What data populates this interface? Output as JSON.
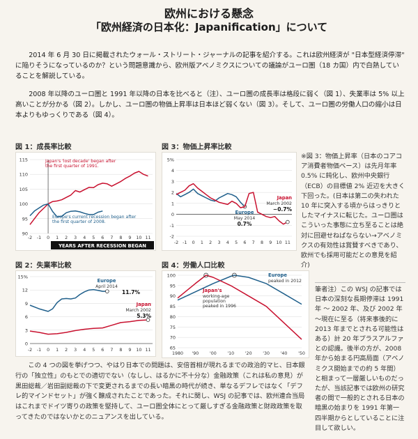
{
  "header": {
    "title": "欧州における懸念",
    "subtitle": "「欧州経済の日本化：Japanification」について"
  },
  "intro": {
    "p1": "2014 年 6 月 30 日に掲載されたウォール・ストリート・ジャーナルの記事を紹介する。これは欧州経済が \"日本型経済停滞\" に陥りそうになっているのか？という問題意識から、欧州版アベノミクスについての議論がユーロ圏（18 カ国）内で白熱していることを解説している。",
    "p2": "2008 年以降のユーロ圏と 1991 年以降の日本を比べると（注）、ユーロ圏の成長率は格段に弱く（図 1）、失業率は 5% 以上高いことが分かる（図 2）。しかし、ユーロ圏の物価上昇率は日本ほど弱くない（図 3）。そして、ユーロ圏の労働人口の縮小は日本よりもゆっくりである（図 4）。"
  },
  "fig1": {
    "label": "図 1：成長率比較",
    "japan_note": "Japan's 'lost decade' began after the first quarter of 1991.",
    "europe_note": "Europe's current recession began after the first quarter of 2008.",
    "axis_banner": "YEARS AFTER RECESSION BEGAN",
    "y_ticks": [
      "115",
      "110",
      "105",
      "100",
      "95",
      "90"
    ],
    "x_ticks": [
      "-2",
      "-1",
      "0",
      "1",
      "2",
      "3",
      "4",
      "5",
      "6",
      "7",
      "8",
      "9",
      "10",
      "11"
    ],
    "colors": {
      "japan": "#c8102e",
      "europe": "#1f5f8b"
    }
  },
  "fig2": {
    "label": "図 2：失業率比較",
    "y_ticks": [
      "15%",
      "12",
      "9",
      "6",
      "3",
      "0"
    ],
    "x_ticks": [
      "-2",
      "-1",
      "0",
      "1",
      "2",
      "3",
      "4",
      "5",
      "6",
      "7",
      "8",
      "9",
      "10",
      "11"
    ],
    "europe_name": "Europe",
    "europe_date": "April 2014",
    "europe_value": "11.7%",
    "japan_name": "Japan",
    "japan_date": "March 2002",
    "japan_value": "5.3%"
  },
  "fig3": {
    "label": "図 3：物価上昇率比較",
    "y_ticks": [
      "5%",
      "4",
      "3",
      "2",
      "1",
      "0",
      "-1",
      "-2"
    ],
    "x_ticks": [
      "-2",
      "-1",
      "0",
      "1",
      "2",
      "3",
      "4",
      "5",
      "6",
      "7",
      "8",
      "9",
      "10",
      "11"
    ],
    "japan_name": "Japan",
    "japan_date": "March 2002",
    "japan_value": "−0.7%",
    "europe_name": "Europe",
    "europe_date": "May 2014",
    "europe_value": "0.7%"
  },
  "fig4": {
    "label": "図 4：労働人口比較",
    "y_ticks": [
      "100",
      "95",
      "90",
      "85",
      "80",
      "75",
      "70",
      "65"
    ],
    "x_ticks": [
      "1980",
      "'90",
      "'00",
      "'10",
      "'20",
      "'30",
      "'40",
      "'50"
    ],
    "europe_name": "Europe",
    "europe_note": "peaked in 2012",
    "japan_name": "Japan's",
    "japan_note1": "working-age",
    "japan_note2": "population",
    "japan_note3": "peaked in 1996"
  },
  "note": "※図 3：物価上昇率（日本のコアコア消費者物価ベース）は先月年率 0.5% に鈍化し、欧州中央銀行（ECB）の目標値 2% 近辺を大きく下回った。(日本は第二の失われた 10 年に突入する頃からはっきりとしたマイナスに転じた。ユーロ圏はこういった事態に立ち至ることは絶対に回避せねばならない→アベノミクスの有効性は賞賛すべきであり、欧州でも採用可能だとの意見を紹介)",
  "author_note": "筆者注）この WSJ の記事では日本の深刻な長期停滞は 1991 年 〜 2002 年、及び 2002 年 〜現在に至る（将来事後的に 2013 年までとされる可能性はある）計 20 年プラスアルファとの認識。後半の方が、2008 年から始まる円高局面（アベノミクス開始までの約 5 年間）と相まって一層厳しいものだったが、当該記事では欧州の研究者の間で一般的とされる日本の暗黒の始まりを 1991 年第一四半期からとしていることに注目して欲しい。",
  "conclusion": "この 4 つの図を挙げつつ、やはり日本での問題は、安倍首相が現れるまでの政治的マヒ、日本銀行の「独立性」のもとでの適切でない（なしし、はるかに不十分な）金融政策（これは私の意見）が黒田総裁／岩田副総裁の下で変更されるまでの長い暗黒の時代が続き、単なるデフレではなく「デフレ的マインドセット」が強く醸成されたことであった。それに関し、WSJ の記事では、欧州連合当局はこれまでドイツ寄りの政策を堅持して、ユーロ圏全体にとって厳しすぎる金融政策と財政政策を取ってきたのではないかとのニュアンスを出している。",
  "chart_data": [
    {
      "type": "line",
      "title": "図 1：成長率比較",
      "xlabel": "YEARS AFTER RECESSION BEGAN",
      "ylim": [
        90,
        115
      ],
      "xlim": [
        -2,
        11.5
      ],
      "series": [
        {
          "name": "Japan",
          "x": [
            -2,
            -1.5,
            -1,
            -0.5,
            0,
            0.5,
            1,
            1.5,
            2,
            2.5,
            3,
            3.5,
            4,
            4.5,
            5,
            5.5,
            6,
            6.5,
            7,
            7.5,
            8,
            8.5,
            9,
            9.5,
            10,
            10.5,
            11
          ],
          "y": [
            93,
            95,
            97,
            98.5,
            100,
            100.8,
            101,
            101.4,
            102.2,
            103,
            104.5,
            104,
            104.8,
            105.6,
            105.5,
            106.5,
            107,
            106.8,
            106,
            106.8,
            107.6,
            108.6,
            109.4,
            110.4,
            111,
            110,
            109.4
          ]
        },
        {
          "name": "Europe",
          "x": [
            -2,
            -1.5,
            -1,
            -0.5,
            0,
            0.5,
            1,
            1.5,
            2,
            2.5,
            3,
            3.5,
            4,
            4.5,
            5,
            5.5,
            6
          ],
          "y": [
            96,
            97.6,
            98.6,
            99.6,
            100,
            97.4,
            95.6,
            95.8,
            97,
            97.5,
            97.6,
            97.3,
            96.8,
            96.4,
            96.4,
            97.2,
            97.6
          ]
        }
      ]
    },
    {
      "type": "line",
      "title": "図 2：失業率比較",
      "ylim": [
        0,
        15
      ],
      "xlim": [
        -2,
        11.5
      ],
      "series": [
        {
          "name": "Europe",
          "x": [
            -2,
            -1,
            0,
            0.5,
            1,
            1.5,
            2,
            2.5,
            3,
            3.5,
            4,
            4.5,
            5,
            5.5,
            6,
            6.5
          ],
          "y": [
            8.6,
            7.8,
            7.2,
            7.8,
            9.2,
            10.0,
            10.1,
            10.0,
            10.2,
            11.0,
            11.6,
            12.0,
            12.1,
            11.9,
            11.7,
            11.7
          ]
        },
        {
          "name": "Japan",
          "x": [
            -2,
            -1,
            0,
            1,
            2,
            3,
            4,
            5,
            6,
            7,
            8,
            9,
            10,
            11
          ],
          "y": [
            2.8,
            2.5,
            2.1,
            2.2,
            2.5,
            2.9,
            3.2,
            3.4,
            3.5,
            4.1,
            4.7,
            4.9,
            5.2,
            5.3
          ]
        }
      ]
    },
    {
      "type": "line",
      "title": "図 3：物価上昇率比較",
      "ylim": [
        -2,
        5
      ],
      "xlim": [
        -2,
        11.5
      ],
      "series": [
        {
          "name": "Europe",
          "x": [
            -2,
            -1.5,
            -1,
            -0.5,
            0,
            0.5,
            1,
            1.5,
            2,
            2.5,
            3,
            3.5,
            4,
            4.5,
            5,
            5.5,
            6
          ],
          "y": [
            1.9,
            1.6,
            1.8,
            2.0,
            2.3,
            1.9,
            1.7,
            1.5,
            1.3,
            1.2,
            1.5,
            1.7,
            1.9,
            1.8,
            1.6,
            1.1,
            0.7
          ]
        },
        {
          "name": "Japan",
          "x": [
            -2,
            -1.5,
            -1,
            -0.5,
            0,
            0.5,
            1,
            1.5,
            2,
            2.5,
            3,
            3.5,
            4,
            4.5,
            5,
            5.5,
            6,
            6.5,
            7,
            7.5,
            8,
            8.5,
            9,
            9.5,
            10,
            10.5,
            11
          ],
          "y": [
            1.8,
            2.0,
            2.2,
            2.6,
            2.8,
            2.4,
            2.1,
            1.8,
            1.5,
            1.3,
            1.1,
            1.0,
            0.9,
            1.2,
            1.0,
            0.6,
            0.7,
            1.9,
            2.0,
            0.2,
            0.0,
            -0.2,
            -0.3,
            -0.2,
            -0.6,
            -0.9,
            -0.7
          ]
        }
      ]
    },
    {
      "type": "line",
      "title": "図 4：労働人口比較",
      "ylim": [
        65,
        100
      ],
      "xlim": [
        1980,
        2050
      ],
      "series": [
        {
          "name": "Europe",
          "x": [
            1980,
            1990,
            2000,
            2010,
            2012,
            2020,
            2030,
            2040,
            2050
          ],
          "y": [
            88,
            92,
            96,
            99.5,
            100,
            99,
            96,
            91,
            86
          ]
        },
        {
          "name": "Japan",
          "x": [
            1980,
            1990,
            1996,
            2000,
            2010,
            2020,
            2030,
            2040,
            2050
          ],
          "y": [
            89,
            96,
            100,
            99,
            95,
            90,
            85,
            77,
            69
          ]
        }
      ]
    }
  ]
}
